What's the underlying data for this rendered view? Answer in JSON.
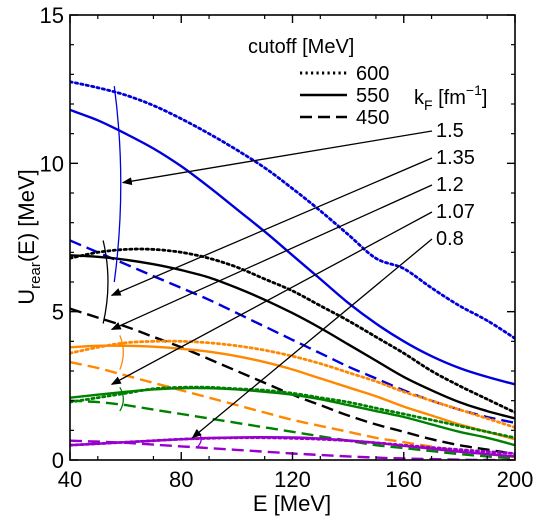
{
  "chart_data": {
    "type": "line",
    "xlabel": "E [MeV]",
    "ylabel_main": "U",
    "ylabel_sub": "rear",
    "ylabel_tail": "(E) [MeV]",
    "xlim": [
      40,
      200
    ],
    "ylim": [
      0,
      15
    ],
    "xticks": [
      40,
      80,
      120,
      160,
      200
    ],
    "yticks": [
      0,
      5,
      10,
      15
    ],
    "grid": false,
    "colors": {
      "kF_1.5": "#0000dd",
      "kF_1.35": "#000000",
      "kF_1.2": "#ff8800",
      "kF_1.07": "#008000",
      "kF_0.8": "#9900cc"
    },
    "legend_cutoff": {
      "title": "cutoff [MeV]",
      "entries": [
        {
          "label": "600",
          "dash": "dotted"
        },
        {
          "label": "550",
          "dash": "solid"
        },
        {
          "label": "450",
          "dash": "dashed"
        }
      ]
    },
    "legend_kf": {
      "title_main": "k",
      "title_sub": "F",
      "title_tail": " [fm",
      "title_sup": "−1",
      "title_end": "]",
      "labels": [
        "1.5",
        "1.35",
        "1.2",
        "1.07",
        "0.8"
      ]
    },
    "x": [
      40,
      50,
      60,
      70,
      80,
      90,
      100,
      110,
      120,
      130,
      140,
      150,
      160,
      170,
      180,
      190,
      200
    ],
    "series": [
      {
        "group": "kF_1.5",
        "dash": "dotted",
        "values": [
          12.75,
          12.55,
          12.3,
          11.95,
          11.5,
          11.0,
          10.45,
          9.85,
          9.15,
          8.4,
          7.6,
          6.8,
          6.45,
          5.8,
          5.2,
          4.7,
          4.1
        ]
      },
      {
        "group": "kF_1.5",
        "dash": "solid",
        "values": [
          11.8,
          11.45,
          11.0,
          10.5,
          9.9,
          9.2,
          8.45,
          7.7,
          6.9,
          6.1,
          5.3,
          4.6,
          4.0,
          3.5,
          3.1,
          2.8,
          2.55
        ]
      },
      {
        "group": "kF_1.5",
        "dash": "dashed",
        "values": [
          7.4,
          7.0,
          6.6,
          6.2,
          5.8,
          5.4,
          4.95,
          4.5,
          4.05,
          3.6,
          3.15,
          2.75,
          2.35,
          2.0,
          1.7,
          1.45,
          1.25
        ]
      },
      {
        "group": "kF_1.35",
        "dash": "dotted",
        "values": [
          6.8,
          7.0,
          7.1,
          7.1,
          7.0,
          6.8,
          6.5,
          6.1,
          5.7,
          5.2,
          4.7,
          4.15,
          3.6,
          3.0,
          2.5,
          2.05,
          1.6
        ]
      },
      {
        "group": "kF_1.35",
        "dash": "solid",
        "values": [
          6.9,
          6.85,
          6.75,
          6.6,
          6.4,
          6.15,
          5.8,
          5.4,
          4.95,
          4.45,
          3.9,
          3.35,
          2.8,
          2.35,
          1.95,
          1.65,
          1.4
        ]
      },
      {
        "group": "kF_1.35",
        "dash": "dashed",
        "values": [
          5.1,
          4.8,
          4.5,
          4.15,
          3.8,
          3.4,
          3.0,
          2.6,
          2.2,
          1.85,
          1.5,
          1.2,
          0.95,
          0.7,
          0.5,
          0.35,
          0.2
        ]
      },
      {
        "group": "kF_1.2",
        "dash": "dotted",
        "values": [
          3.6,
          3.8,
          3.95,
          4.0,
          4.0,
          3.95,
          3.85,
          3.7,
          3.5,
          3.25,
          2.95,
          2.65,
          2.3,
          2.0,
          1.7,
          1.4,
          1.1
        ]
      },
      {
        "group": "kF_1.2",
        "dash": "solid",
        "values": [
          3.8,
          3.85,
          3.85,
          3.82,
          3.75,
          3.65,
          3.5,
          3.3,
          3.05,
          2.75,
          2.45,
          2.15,
          1.8,
          1.5,
          1.2,
          0.95,
          0.7
        ]
      },
      {
        "group": "kF_1.2",
        "dash": "dashed",
        "values": [
          3.3,
          3.1,
          2.85,
          2.6,
          2.35,
          2.1,
          1.85,
          1.6,
          1.35,
          1.15,
          0.95,
          0.75,
          0.6,
          0.45,
          0.3,
          0.2,
          0.1
        ]
      },
      {
        "group": "kF_1.07",
        "dash": "dotted",
        "values": [
          1.95,
          2.1,
          2.25,
          2.4,
          2.45,
          2.45,
          2.4,
          2.35,
          2.25,
          2.1,
          1.95,
          1.75,
          1.55,
          1.35,
          1.15,
          0.95,
          0.75
        ]
      },
      {
        "group": "kF_1.07",
        "dash": "solid",
        "values": [
          2.1,
          2.2,
          2.3,
          2.38,
          2.42,
          2.42,
          2.38,
          2.3,
          2.2,
          2.05,
          1.85,
          1.65,
          1.45,
          1.2,
          0.95,
          0.75,
          0.5
        ]
      },
      {
        "group": "kF_1.07",
        "dash": "dashed",
        "values": [
          2.0,
          1.95,
          1.85,
          1.7,
          1.55,
          1.4,
          1.25,
          1.1,
          0.95,
          0.8,
          0.65,
          0.5,
          0.4,
          0.3,
          0.2,
          0.12,
          0.05
        ]
      },
      {
        "group": "kF_0.8",
        "dash": "dotted",
        "values": [
          0.5,
          0.55,
          0.6,
          0.65,
          0.7,
          0.73,
          0.75,
          0.75,
          0.73,
          0.7,
          0.65,
          0.58,
          0.5,
          0.42,
          0.35,
          0.28,
          0.22
        ]
      },
      {
        "group": "kF_0.8",
        "dash": "solid",
        "values": [
          0.5,
          0.55,
          0.6,
          0.65,
          0.7,
          0.74,
          0.76,
          0.77,
          0.76,
          0.72,
          0.66,
          0.58,
          0.48,
          0.38,
          0.28,
          0.2,
          0.12
        ]
      },
      {
        "group": "kF_0.8",
        "dash": "dashed",
        "values": [
          0.65,
          0.62,
          0.58,
          0.52,
          0.46,
          0.4,
          0.34,
          0.28,
          0.22,
          0.17,
          0.12,
          0.08,
          0.05,
          0.03,
          0.01,
          0.0,
          -0.02
        ]
      }
    ],
    "brackets": [
      {
        "group": "kF_1.5",
        "x": 57,
        "ylo": 6.0,
        "yhi": 12.6
      },
      {
        "group": "kF_1.35",
        "x": 53,
        "ylo": 4.6,
        "yhi": 7.4
      },
      {
        "group": "kF_1.2",
        "x": 59,
        "ylo": 3.05,
        "yhi": 4.2
      },
      {
        "group": "kF_1.07",
        "x": 59,
        "ylo": 1.65,
        "yhi": 2.45
      },
      {
        "group": "kF_0.8",
        "x": 87,
        "ylo": 0.45,
        "yhi": 0.95
      }
    ],
    "arrows": [
      {
        "label": "1.5",
        "tx": 59,
        "ty": 9.35
      },
      {
        "label": "1.35",
        "tx": 55,
        "ty": 5.55
      },
      {
        "label": "1.2",
        "tx": 55,
        "ty": 4.4
      },
      {
        "label": "1.07",
        "tx": 55,
        "ty": 2.55
      },
      {
        "label": "0.8",
        "tx": 84,
        "ty": 0.75
      }
    ]
  }
}
